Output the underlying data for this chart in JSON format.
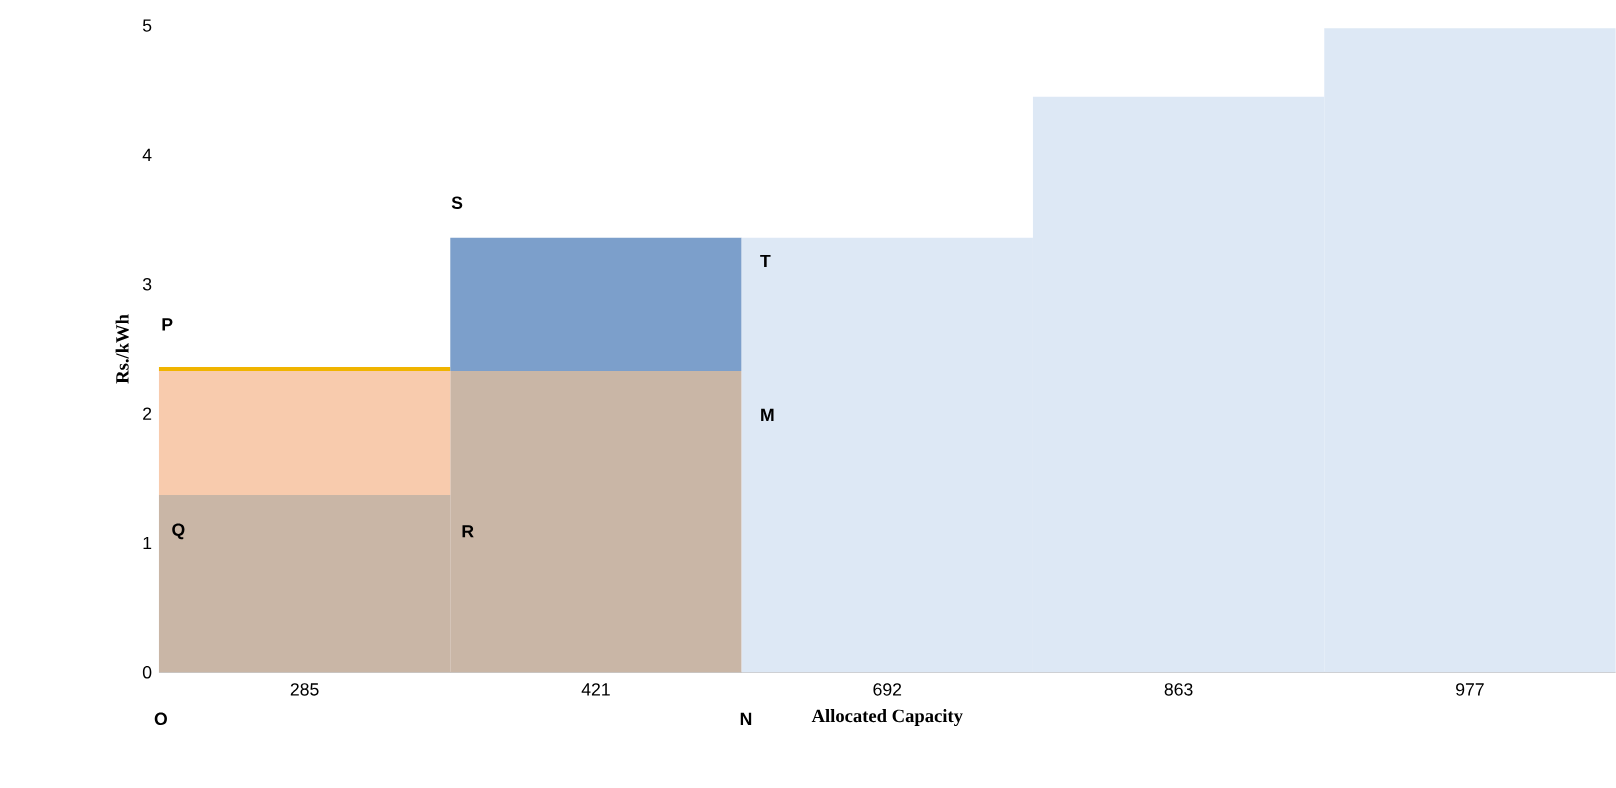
{
  "chart_data": {
    "type": "bar",
    "stacked": true,
    "xlabel": "Allocated Capacity",
    "ylabel": "Rs./kWh",
    "categories": [
      "285",
      "421",
      "692",
      "863",
      "977"
    ],
    "ylim": [
      0,
      5
    ],
    "yticks": [
      0,
      1,
      2,
      3,
      4,
      5
    ],
    "series": [
      {
        "color": "#c9b6a6",
        "values": [
          1.37,
          2.33,
          null,
          null,
          null
        ]
      },
      {
        "color": "#f8cbad",
        "values": [
          0.96,
          null,
          null,
          null,
          null
        ]
      },
      {
        "color": "#f0b400",
        "values": [
          0.03,
          null,
          null,
          null,
          null
        ]
      },
      {
        "color": "#7c9fcb",
        "values": [
          null,
          1.03,
          null,
          null,
          null
        ]
      },
      {
        "color": "#dde8f5",
        "values": [
          null,
          null,
          3.36,
          4.45,
          4.98
        ]
      }
    ],
    "annotations": [
      "P",
      "S",
      "T",
      "M",
      "Q",
      "R",
      "O",
      "N"
    ]
  }
}
